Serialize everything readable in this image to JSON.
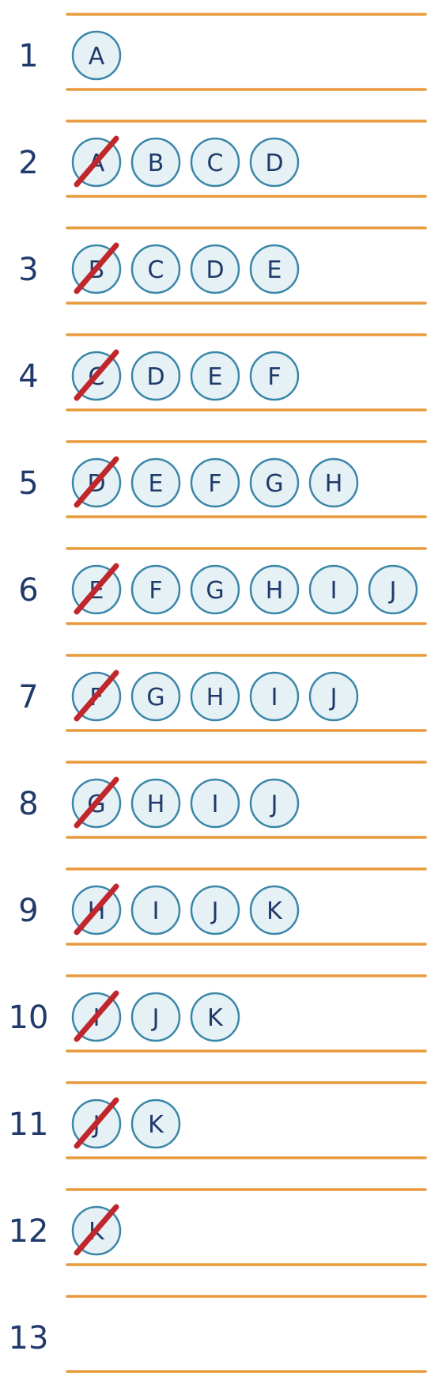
{
  "rows": [
    {
      "number": "1",
      "letters": [
        "A"
      ],
      "crossed_first": false
    },
    {
      "number": "2",
      "letters": [
        "A",
        "B",
        "C",
        "D"
      ],
      "crossed_first": true
    },
    {
      "number": "3",
      "letters": [
        "B",
        "C",
        "D",
        "E"
      ],
      "crossed_first": true
    },
    {
      "number": "4",
      "letters": [
        "C",
        "D",
        "E",
        "F"
      ],
      "crossed_first": true
    },
    {
      "number": "5",
      "letters": [
        "D",
        "E",
        "F",
        "G",
        "H"
      ],
      "crossed_first": true
    },
    {
      "number": "6",
      "letters": [
        "E",
        "F",
        "G",
        "H",
        "I",
        "J"
      ],
      "crossed_first": true
    },
    {
      "number": "7",
      "letters": [
        "F",
        "G",
        "H",
        "I",
        "J"
      ],
      "crossed_first": true
    },
    {
      "number": "8",
      "letters": [
        "G",
        "H",
        "I",
        "J"
      ],
      "crossed_first": true
    },
    {
      "number": "9",
      "letters": [
        "H",
        "I",
        "J",
        "K"
      ],
      "crossed_first": true
    },
    {
      "number": "10",
      "letters": [
        "I",
        "J",
        "K"
      ],
      "crossed_first": true
    },
    {
      "number": "11",
      "letters": [
        "J",
        "K"
      ],
      "crossed_first": true
    },
    {
      "number": "12",
      "letters": [
        "K"
      ],
      "crossed_first": true
    },
    {
      "number": "13",
      "letters": [],
      "crossed_first": false
    }
  ],
  "colors": {
    "number": "#1f3a6b",
    "bubble_fill": "#e6f1f5",
    "bubble_stroke": "#3a86a8",
    "rule": "#e89a3c",
    "strike": "#c0272d"
  }
}
